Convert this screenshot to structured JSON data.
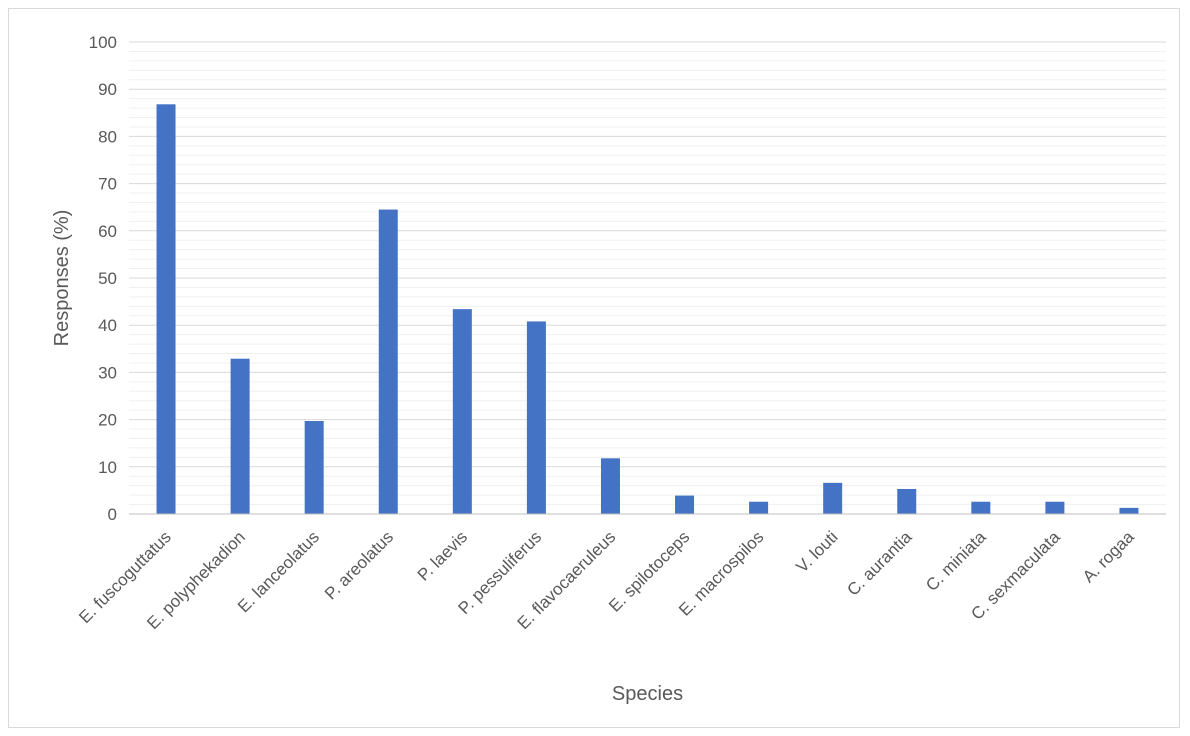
{
  "chart_data": {
    "type": "bar",
    "title": "",
    "xlabel": "Species",
    "ylabel": "Responses (%)",
    "ylim": [
      0,
      100
    ],
    "y_ticks": [
      "0",
      "10",
      "20",
      "30",
      "40",
      "50",
      "60",
      "70",
      "80",
      "90",
      "100"
    ],
    "minor_grid_step": 2,
    "grid": true,
    "legend": "none",
    "bar_color": "#4472c4",
    "categories": [
      "E. fuscoguttatus",
      "E. polyphekadion",
      "E. lanceolatus",
      "P. areolatus",
      "P. laevis",
      "P. pessuliferus",
      "E. flavocaeruleus",
      "E. spilotoceps",
      "E. macrospilos",
      "V. louti",
      "C. aurantia",
      "C. miniata",
      "C. sexmaculata",
      "A. rogaa"
    ],
    "values": [
      86.8,
      32.9,
      19.7,
      64.5,
      43.4,
      40.8,
      11.8,
      3.9,
      2.6,
      6.6,
      5.3,
      2.6,
      2.6,
      1.3
    ]
  }
}
